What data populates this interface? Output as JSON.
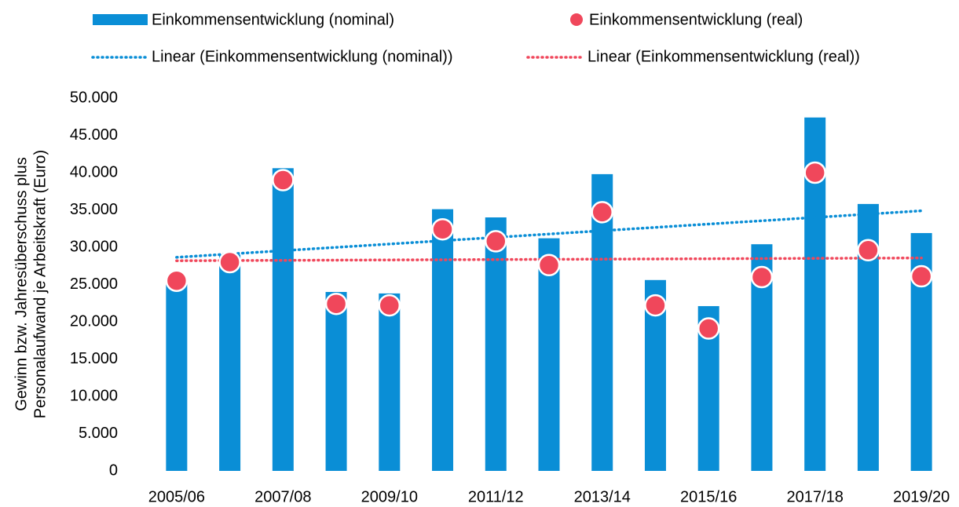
{
  "chart_data": {
    "type": "bar",
    "ylabel": [
      "Gewinn bzw. Jahresüberschuss plus",
      "Personalaufwand je Arbeitskraft (Euro)"
    ],
    "categories": [
      "2005/06",
      null,
      "2007/08",
      null,
      "2009/10",
      null,
      "2011/12",
      null,
      "2013/14",
      null,
      "2015/16",
      null,
      "2017/18",
      null,
      "2019/20"
    ],
    "series": [
      {
        "name": "Einkommensentwicklung (nominal)",
        "color": "#0a8ed6",
        "mark": "bar",
        "values": [
          25800,
          29000,
          40600,
          24000,
          23800,
          35100,
          34000,
          31200,
          39800,
          25600,
          22100,
          30400,
          47400,
          35800,
          31900
        ]
      },
      {
        "name": "Einkommensentwicklung (real)",
        "color": "#f0475b",
        "mark": "dot",
        "values": [
          25500,
          28000,
          39000,
          22400,
          22200,
          32400,
          30800,
          27600,
          34700,
          22200,
          19100,
          26000,
          40000,
          29600,
          26100
        ]
      }
    ],
    "trendlines": [
      {
        "name": "Linear (Einkommensentwicklung (nominal))",
        "of": 0,
        "color": "#0a8ed6"
      },
      {
        "name": "Linear (Einkommensentwicklung (real))",
        "of": 1,
        "color": "#f0475b"
      }
    ],
    "ylim": [
      0,
      50000
    ],
    "yticks": [
      0,
      {
        "value": 5000,
        "label": "5.000"
      },
      {
        "value": 10000,
        "label": "10.000"
      },
      {
        "value": 15000,
        "label": "15.000"
      },
      {
        "value": 20000,
        "label": "20.000"
      },
      {
        "value": 25000,
        "label": "25.000"
      },
      {
        "value": 30000,
        "label": "30.000"
      },
      {
        "value": 35000,
        "label": "35.000"
      },
      {
        "value": 40000,
        "label": "40.000"
      },
      {
        "value": 45000,
        "label": "45.000"
      },
      {
        "value": 50000,
        "label": "50.000"
      }
    ]
  }
}
